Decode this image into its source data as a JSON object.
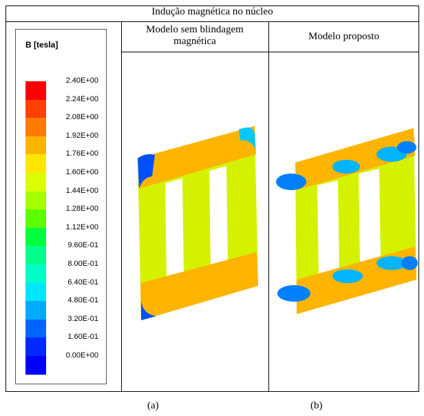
{
  "title": "Indução magnética no núcleo",
  "columns": [
    "Modelo sem blindagem magnética",
    "Modelo proposto"
  ],
  "legend": {
    "title": "B [tesla]",
    "labels": [
      "2.40E+00",
      "2.24E+00",
      "2.08E+00",
      "1.92E+00",
      "1.76E+00",
      "1.60E+00",
      "1.44E+00",
      "1.28E+00",
      "1.12E+00",
      "9.60E-01",
      "8.00E-01",
      "6.40E-01",
      "4.80E-01",
      "3.20E-01",
      "1.60E-01",
      "0.00E+00"
    ],
    "colors": [
      "#ff0000",
      "#ff4000",
      "#ff7a00",
      "#ffb400",
      "#ffe600",
      "#dcff00",
      "#a6ff00",
      "#5cff00",
      "#00ff3c",
      "#00ff8c",
      "#00ffc8",
      "#00e6ff",
      "#00aaff",
      "#0064ff",
      "#0028ff",
      "#0000ff"
    ]
  },
  "captions": [
    "(a)",
    "(b)"
  ]
}
